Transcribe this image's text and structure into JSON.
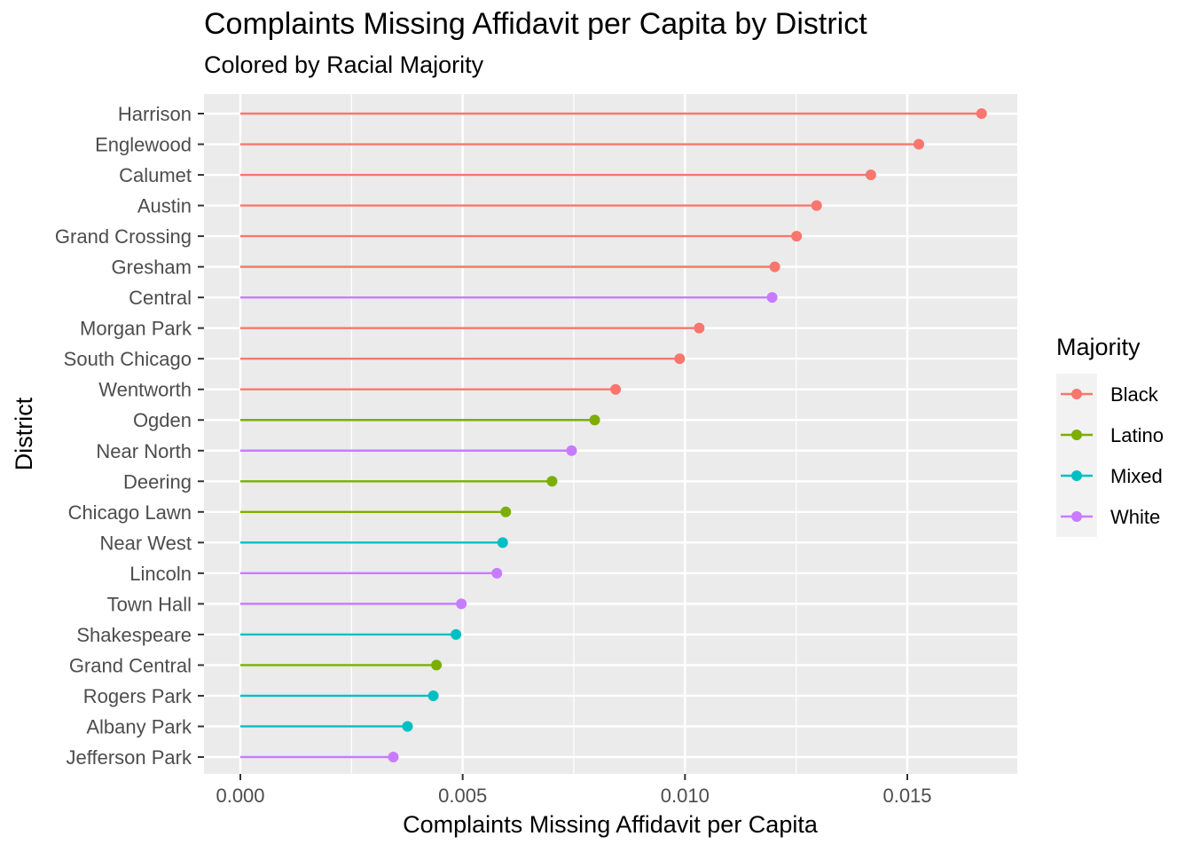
{
  "chart_data": {
    "type": "lollipop",
    "title": "Complaints Missing Affidavit per Capita by District",
    "subtitle": "Colored by Racial Majority",
    "xlabel": "Complaints Missing Affidavit per Capita",
    "ylabel": "District",
    "xlim": [
      -0.0008,
      0.0175
    ],
    "xticks": [
      0.0,
      0.005,
      0.01,
      0.015
    ],
    "xtick_labels": [
      "0.000",
      "0.005",
      "0.010",
      "0.015"
    ],
    "grid": true,
    "legend": {
      "title": "Majority",
      "placement": "right",
      "entries": [
        {
          "label": "Black",
          "color": "#F8766D"
        },
        {
          "label": "Latino",
          "color": "#7CAE00"
        },
        {
          "label": "Mixed",
          "color": "#00BFC4"
        },
        {
          "label": "White",
          "color": "#C77CFF"
        }
      ]
    },
    "points": [
      {
        "district": "Harrison",
        "value": 0.01667,
        "majority": "Black"
      },
      {
        "district": "Englewood",
        "value": 0.01526,
        "majority": "Black"
      },
      {
        "district": "Calumet",
        "value": 0.01418,
        "majority": "Black"
      },
      {
        "district": "Austin",
        "value": 0.01296,
        "majority": "Black"
      },
      {
        "district": "Grand Crossing",
        "value": 0.01251,
        "majority": "Black"
      },
      {
        "district": "Gresham",
        "value": 0.01202,
        "majority": "Black"
      },
      {
        "district": "Central",
        "value": 0.01196,
        "majority": "White"
      },
      {
        "district": "Morgan Park",
        "value": 0.01032,
        "majority": "Black"
      },
      {
        "district": "South Chicago",
        "value": 0.00988,
        "majority": "Black"
      },
      {
        "district": "Wentworth",
        "value": 0.00844,
        "majority": "Black"
      },
      {
        "district": "Ogden",
        "value": 0.00797,
        "majority": "Latino"
      },
      {
        "district": "Near North",
        "value": 0.00745,
        "majority": "White"
      },
      {
        "district": "Deering",
        "value": 0.00701,
        "majority": "Latino"
      },
      {
        "district": "Chicago Lawn",
        "value": 0.00597,
        "majority": "Latino"
      },
      {
        "district": "Near West",
        "value": 0.0059,
        "majority": "Mixed"
      },
      {
        "district": "Lincoln",
        "value": 0.00577,
        "majority": "White"
      },
      {
        "district": "Town Hall",
        "value": 0.00497,
        "majority": "White"
      },
      {
        "district": "Shakespeare",
        "value": 0.00485,
        "majority": "Mixed"
      },
      {
        "district": "Grand Central",
        "value": 0.00441,
        "majority": "Latino"
      },
      {
        "district": "Rogers Park",
        "value": 0.00434,
        "majority": "Mixed"
      },
      {
        "district": "Albany Park",
        "value": 0.00376,
        "majority": "Mixed"
      },
      {
        "district": "Jefferson Park",
        "value": 0.00344,
        "majority": "White"
      }
    ]
  }
}
